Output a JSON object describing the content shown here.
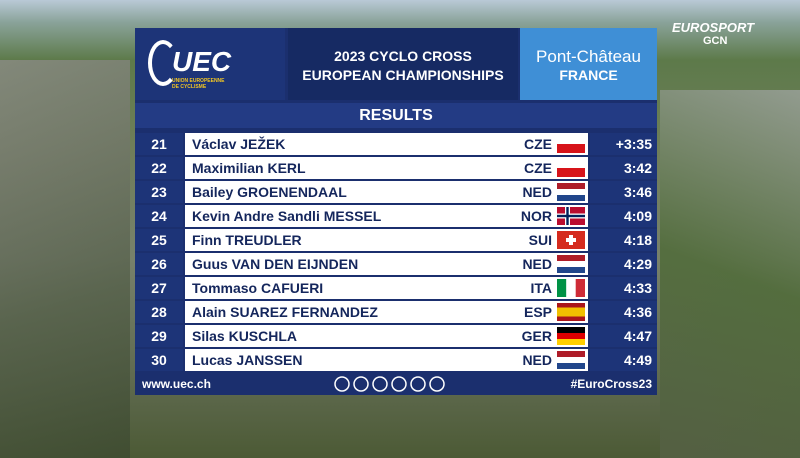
{
  "broadcaster": {
    "name": "EUROSPORT",
    "partner": "GCN"
  },
  "header": {
    "logo": "UEC",
    "logo_subtitle": "UNION EUROPEENNE DE CYCLISME",
    "title_line1": "2023 CYCLO CROSS",
    "title_line2": "EUROPEAN CHAMPIONSHIPS",
    "city": "Pont-Château",
    "country": "FRANCE"
  },
  "section_title": "RESULTS",
  "table": {
    "rows": [
      [
        21,
        "Václav JEŽEK",
        "CZE",
        "+3:35"
      ],
      [
        22,
        "Maximilian KERL",
        "CZE",
        "3:42"
      ],
      [
        23,
        "Bailey GROENENDAAL",
        "NED",
        "3:46"
      ],
      [
        24,
        "Kevin Andre Sandli MESSEL",
        "NOR",
        "4:09"
      ],
      [
        25,
        "Finn TREUDLER",
        "SUI",
        "4:18"
      ],
      [
        26,
        "Guus VAN DEN EIJNDEN",
        "NED",
        "4:29"
      ],
      [
        27,
        "Tommaso CAFUERI",
        "ITA",
        "4:33"
      ],
      [
        28,
        "Alain SUAREZ FERNANDEZ",
        "ESP",
        "4:36"
      ],
      [
        29,
        "Silas KUSCHLA",
        "GER",
        "4:47"
      ],
      [
        30,
        "Lucas JANSSEN",
        "NED",
        "4:49"
      ]
    ]
  },
  "footer": {
    "website": "www.uec.ch",
    "hashtag": "#EuroCross23"
  }
}
